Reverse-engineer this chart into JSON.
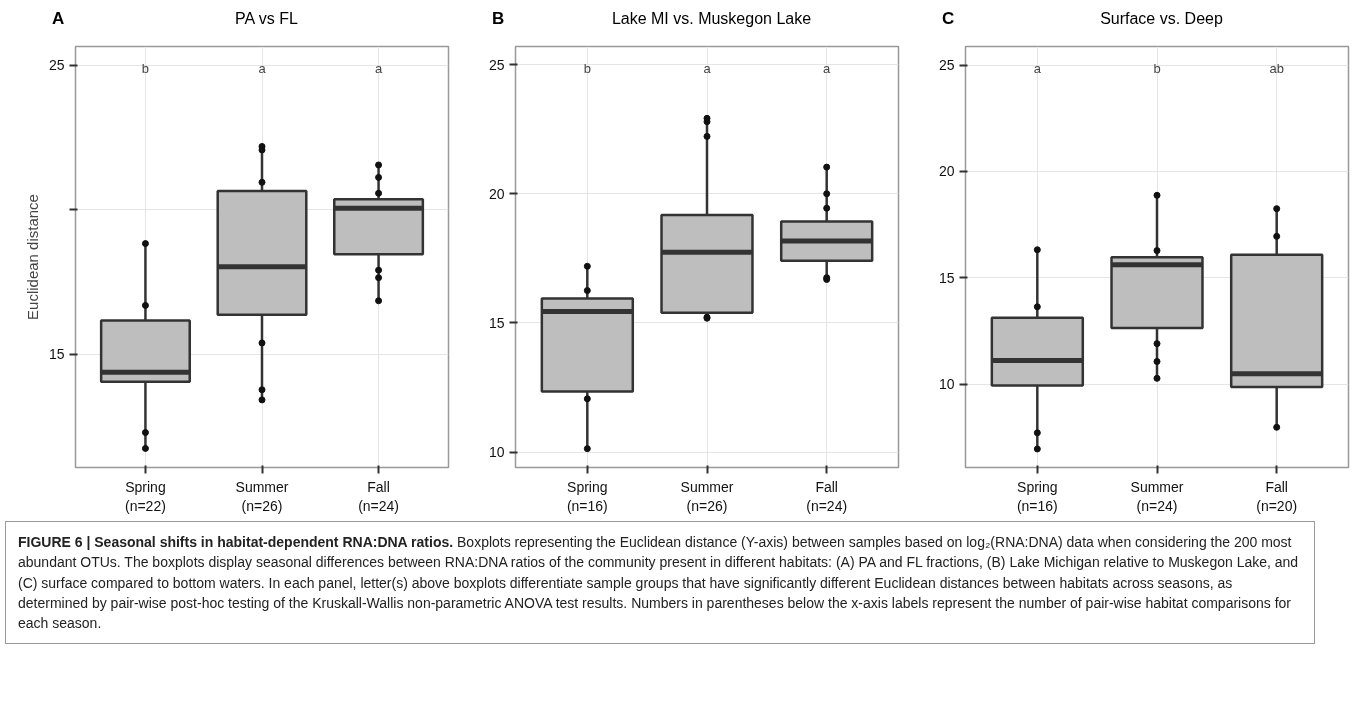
{
  "chart_data": [
    {
      "type": "box",
      "title": "PA vs FL",
      "ylabel": "Euclidean distance",
      "categories": [
        "Spring\n(n=22)",
        "Summer\n(n=26)",
        "Fall\n(n=24)"
      ],
      "series": [
        {
          "color": "#bebebe",
          "boxes": [
            {
              "low": 11.74,
              "q1": 14.05,
              "median": 14.38,
              "q3": 16.17,
              "high": 18.83,
              "outliers": [
                18.83,
                16.69,
                12.29,
                11.74
              ]
            },
            {
              "low": 13.42,
              "q1": 16.37,
              "median": 18.03,
              "q3": 20.65,
              "high": 22.19,
              "outliers": [
                22.19,
                22.07,
                20.95,
                15.39,
                13.77,
                13.42
              ]
            },
            {
              "low": 16.85,
              "q1": 18.46,
              "median": 20.05,
              "q3": 20.36,
              "high": 21.55,
              "outliers": [
                21.55,
                21.12,
                20.57,
                17.91,
                17.65,
                16.85
              ]
            }
          ]
        }
      ],
      "ylim": [
        11.08,
        25.65
      ],
      "yticks": [
        15,
        {
          "value": 20,
          "label": null
        },
        25
      ],
      "grid": true,
      "annotations": [
        "A",
        "b",
        "a",
        "a"
      ]
    },
    {
      "type": "box",
      "title": "Lake MI vs. Muskegon Lake",
      "categories": [
        "Spring\n(n=16)",
        "Summer\n(n=26)",
        "Fall\n(n=24)"
      ],
      "series": [
        {
          "color": "#bebebe",
          "boxes": [
            {
              "low": 10.13,
              "q1": 12.34,
              "median": 15.44,
              "q3": 15.94,
              "high": 17.19,
              "outliers": [
                17.19,
                16.25,
                12.06,
                10.13
              ]
            },
            {
              "low": 15.18,
              "q1": 15.39,
              "median": 17.73,
              "q3": 19.18,
              "high": 22.92,
              "outliers": [
                22.92,
                22.79,
                22.22,
                15.22,
                15.18
              ]
            },
            {
              "low": 16.68,
              "q1": 17.4,
              "median": 18.17,
              "q3": 18.92,
              "high": 21.03,
              "outliers": [
                21.03,
                20.0,
                19.44,
                16.75,
                16.68
              ]
            }
          ]
        }
      ],
      "ylim": [
        9.4,
        25.7
      ],
      "yticks": [
        10,
        15,
        20,
        25
      ],
      "grid": true,
      "annotations": [
        "B",
        "b",
        "a",
        "a"
      ]
    },
    {
      "type": "box",
      "title": "Surface vs. Deep",
      "categories": [
        "Spring\n(n=16)",
        "Summer\n(n=24)",
        "Fall\n(n=20)"
      ],
      "series": [
        {
          "color": "#bebebe",
          "boxes": [
            {
              "low": 6.96,
              "q1": 9.94,
              "median": 11.12,
              "q3": 13.13,
              "high": 16.32,
              "outliers": [
                16.32,
                13.64,
                7.72,
                6.96
              ]
            },
            {
              "low": 10.28,
              "q1": 12.65,
              "median": 15.62,
              "q3": 15.97,
              "high": 18.88,
              "outliers": [
                18.88,
                16.28,
                11.91,
                11.07,
                10.28
              ]
            },
            {
              "low": 7.98,
              "q1": 9.87,
              "median": 10.5,
              "q3": 16.08,
              "high": 18.25,
              "outliers": [
                18.25,
                16.95,
                7.98
              ]
            }
          ]
        }
      ],
      "ylim": [
        6.09,
        25.87
      ],
      "yticks": [
        10,
        15,
        20,
        25
      ],
      "grid": true,
      "annotations": [
        "C",
        "a",
        "b",
        "ab"
      ]
    },
    {
      "type": "other",
      "title": "FIGURE 6 | Seasonal shifts in habitat-dependent RNA:DNA ratios.",
      "annotations": [
        "Boxplots representing the Euclidean distance (Y-axis) between samples based on log₂(RNA:DNA) data when considering the 200 most abundant OTUs. The boxplots display seasonal differences between RNA:DNA ratios of the community present in different habitats: (A) PA and FL fractions, (B) Lake Michigan relative to Muskegon Lake, and (C) surface compared to bottom waters. In each panel, letter(s) above boxplots differentiate sample groups that have significantly different Euclidean distances between habitats across seasons, as determined by pair-wise post-hoc testing of the Kruskall-Wallis non-parametric ANOVA test results. Numbers in parentheses below the x-axis labels represent the number of pair-wise habitat comparisons for each season."
      ]
    }
  ]
}
